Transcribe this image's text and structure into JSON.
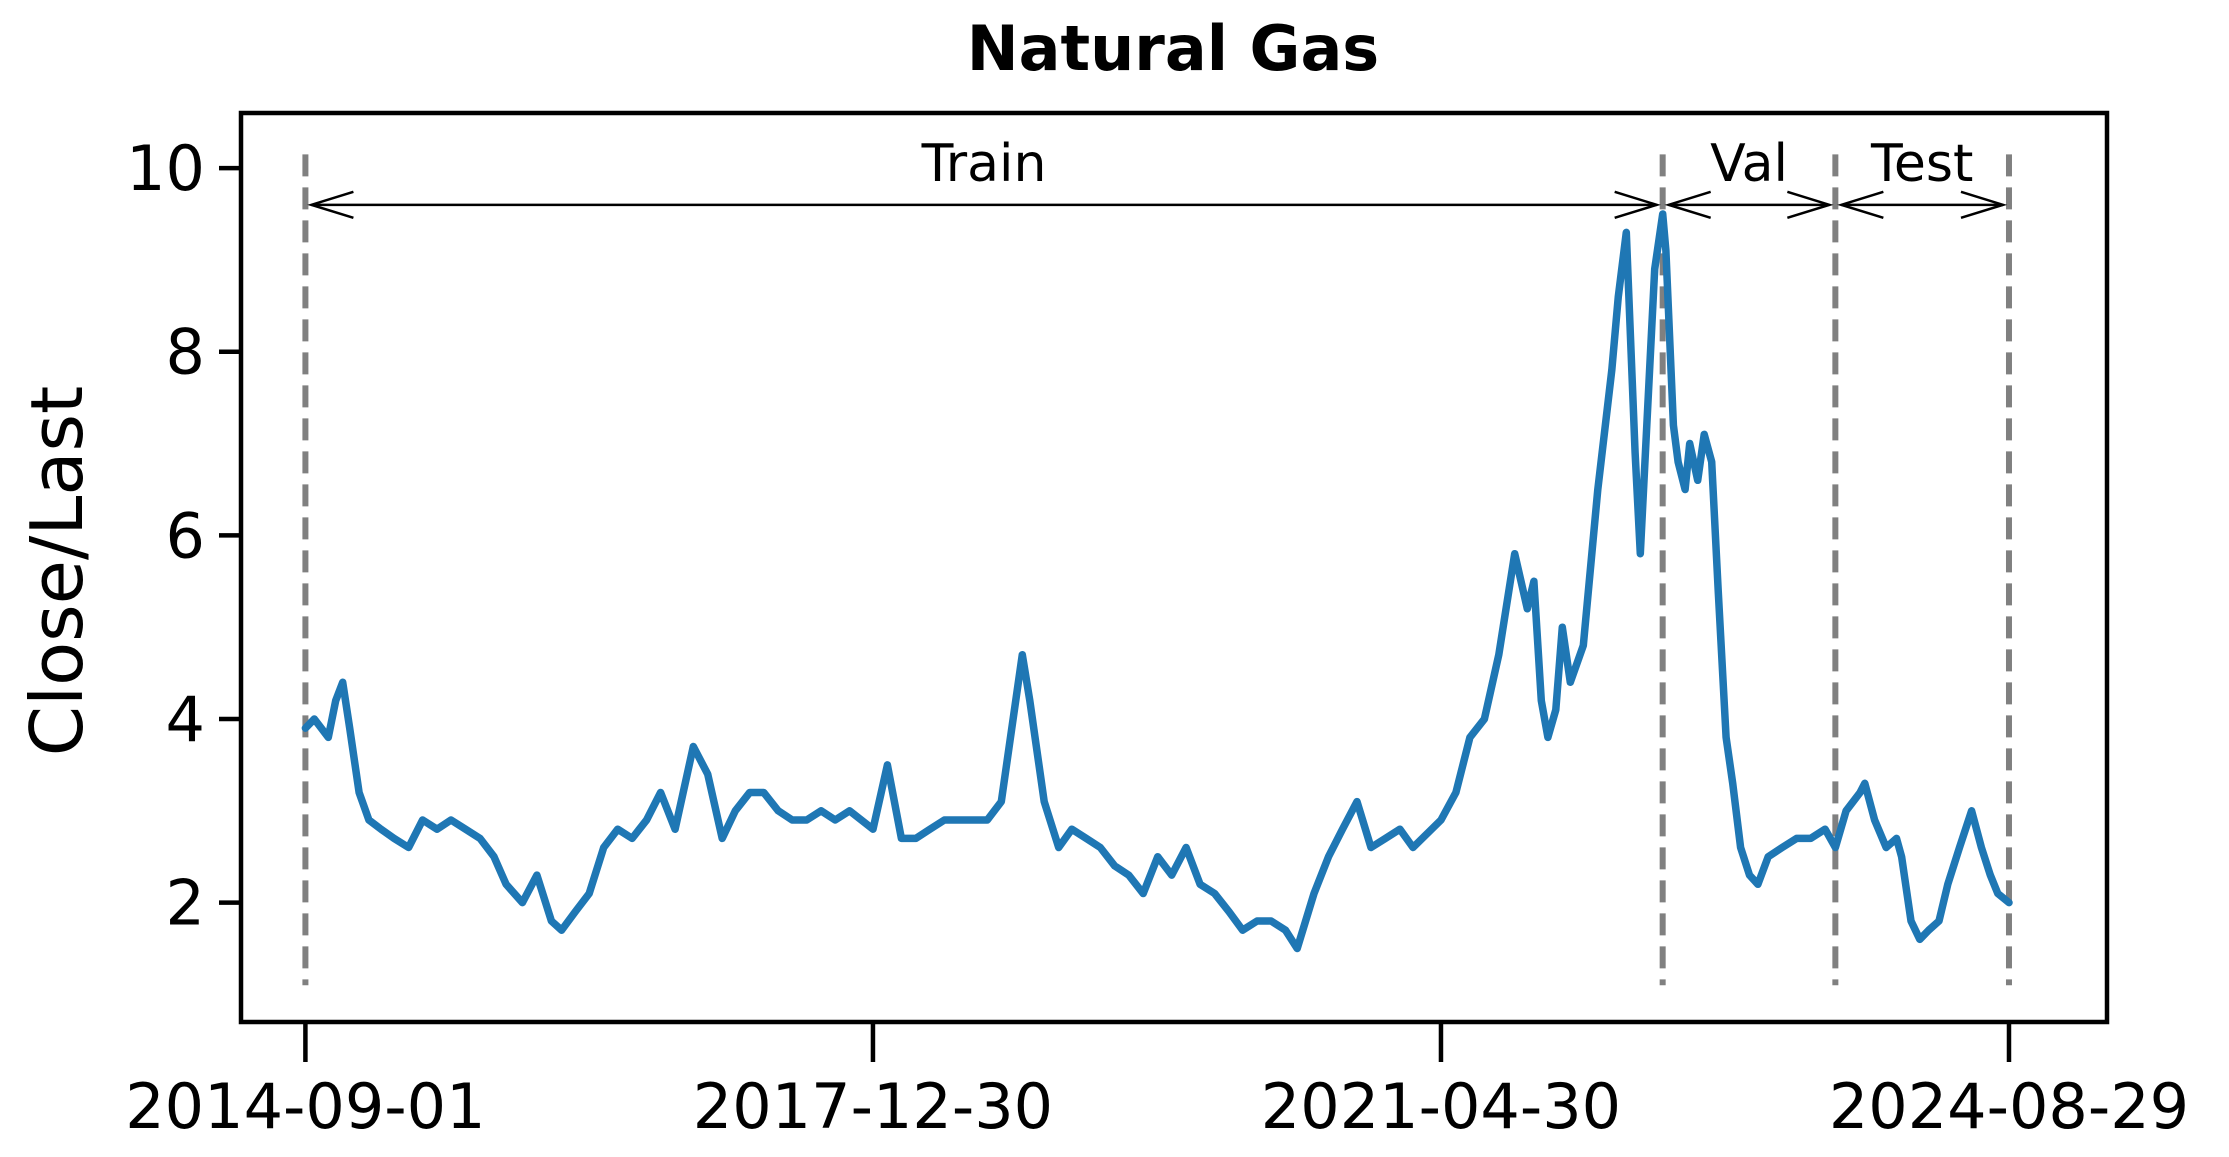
{
  "chart_data": {
    "type": "line",
    "title": "Natural Gas",
    "xlabel": "",
    "ylabel": "Close/Last",
    "x_ticks": [
      "2014-09-01",
      "2017-12-30",
      "2021-04-30",
      "2024-08-29"
    ],
    "y_ticks": [
      2,
      4,
      6,
      8,
      10
    ],
    "xlim": [
      "2014-04-16",
      "2025-03-27"
    ],
    "ylim": [
      0.7,
      10.6
    ],
    "grid": false,
    "legend": "none",
    "colors": {
      "series": "#1f77b4",
      "boundary": "#808080",
      "frame": "#000000"
    },
    "splits": {
      "boundaries": [
        "2014-09-01",
        "2022-08-18",
        "2023-08-23",
        "2024-08-29"
      ],
      "labels": [
        "Train",
        "Val",
        "Test"
      ]
    },
    "series": [
      {
        "x": [
          "2014-09-01",
          "2014-09-20",
          "2014-10-20",
          "2014-11-05",
          "2014-11-20",
          "2014-12-05",
          "2014-12-25",
          "2015-01-15",
          "2015-02-10",
          "2015-03-10",
          "2015-04-10",
          "2015-05-10",
          "2015-06-10",
          "2015-07-10",
          "2015-08-10",
          "2015-09-10",
          "2015-10-10",
          "2015-11-05",
          "2015-12-10",
          "2016-01-10",
          "2016-02-10",
          "2016-03-03",
          "2016-04-01",
          "2016-05-01",
          "2016-06-01",
          "2016-07-01",
          "2016-08-01",
          "2016-09-01",
          "2016-10-01",
          "2016-11-01",
          "2016-12-10",
          "2017-01-10",
          "2017-02-10",
          "2017-03-10",
          "2017-04-10",
          "2017-05-10",
          "2017-06-10",
          "2017-07-10",
          "2017-08-10",
          "2017-09-10",
          "2017-10-10",
          "2017-11-10",
          "2017-12-30",
          "2018-01-30",
          "2018-03-01",
          "2018-04-01",
          "2018-05-01",
          "2018-06-01",
          "2018-07-01",
          "2018-08-01",
          "2018-09-01",
          "2018-10-01",
          "2018-11-15",
          "2018-12-01",
          "2019-01-01",
          "2019-02-01",
          "2019-03-01",
          "2019-04-01",
          "2019-05-01",
          "2019-06-01",
          "2019-07-01",
          "2019-08-01",
          "2019-09-01",
          "2019-10-01",
          "2019-11-01",
          "2019-12-01",
          "2020-01-01",
          "2020-02-01",
          "2020-03-01",
          "2020-04-01",
          "2020-05-01",
          "2020-06-01",
          "2020-06-26",
          "2020-08-01",
          "2020-09-01",
          "2020-10-01",
          "2020-11-01",
          "2020-12-01",
          "2021-01-01",
          "2021-02-01",
          "2021-03-01",
          "2021-04-30",
          "2021-06-01",
          "2021-07-01",
          "2021-08-01",
          "2021-09-01",
          "2021-10-05",
          "2021-11-01",
          "2021-11-15",
          "2021-12-01",
          "2021-12-15",
          "2022-01-01",
          "2022-01-15",
          "2022-02-01",
          "2022-03-01",
          "2022-04-01",
          "2022-05-01",
          "2022-05-15",
          "2022-06-01",
          "2022-06-20",
          "2022-07-01",
          "2022-08-01",
          "2022-08-18",
          "2022-08-25",
          "2022-09-10",
          "2022-09-20",
          "2022-10-05",
          "2022-10-15",
          "2022-11-01",
          "2022-11-15",
          "2022-12-01",
          "2022-12-15",
          "2023-01-01",
          "2023-01-15",
          "2023-02-01",
          "2023-02-20",
          "2023-03-10",
          "2023-04-01",
          "2023-05-01",
          "2023-06-01",
          "2023-07-01",
          "2023-08-01",
          "2023-08-23",
          "2023-09-15",
          "2023-10-15",
          "2023-10-25",
          "2023-11-15",
          "2023-12-10",
          "2024-01-01",
          "2024-01-12",
          "2024-02-01",
          "2024-02-20",
          "2024-03-10",
          "2024-04-01",
          "2024-04-20",
          "2024-05-15",
          "2024-06-10",
          "2024-07-01",
          "2024-07-20",
          "2024-08-05",
          "2024-08-29"
        ],
        "y": [
          3.9,
          4.0,
          3.8,
          4.2,
          4.4,
          3.9,
          3.2,
          2.9,
          2.8,
          2.7,
          2.6,
          2.9,
          2.8,
          2.9,
          2.8,
          2.7,
          2.5,
          2.2,
          2.0,
          2.3,
          1.8,
          1.7,
          1.9,
          2.1,
          2.6,
          2.8,
          2.7,
          2.9,
          3.2,
          2.8,
          3.7,
          3.4,
          2.7,
          3.0,
          3.2,
          3.2,
          3.0,
          2.9,
          2.9,
          3.0,
          2.9,
          3.0,
          2.8,
          3.5,
          2.7,
          2.7,
          2.8,
          2.9,
          2.9,
          2.9,
          2.9,
          3.1,
          4.7,
          4.2,
          3.1,
          2.6,
          2.8,
          2.7,
          2.6,
          2.4,
          2.3,
          2.1,
          2.5,
          2.3,
          2.6,
          2.2,
          2.1,
          1.9,
          1.7,
          1.8,
          1.8,
          1.7,
          1.5,
          2.1,
          2.5,
          2.8,
          3.1,
          2.6,
          2.7,
          2.8,
          2.6,
          2.9,
          3.2,
          3.8,
          4.0,
          4.7,
          5.8,
          5.2,
          5.5,
          4.2,
          3.8,
          4.1,
          5.0,
          4.4,
          4.8,
          6.5,
          7.8,
          8.6,
          9.3,
          6.9,
          5.8,
          8.9,
          9.5,
          9.1,
          7.2,
          6.8,
          6.5,
          7.0,
          6.6,
          7.1,
          6.8,
          5.4,
          3.8,
          3.3,
          2.6,
          2.3,
          2.2,
          2.5,
          2.6,
          2.7,
          2.7,
          2.8,
          2.6,
          3.0,
          3.2,
          3.3,
          2.9,
          2.6,
          2.7,
          2.5,
          1.8,
          1.6,
          1.7,
          1.8,
          2.2,
          2.6,
          3.0,
          2.6,
          2.3,
          2.1,
          2.0
        ]
      }
    ]
  }
}
